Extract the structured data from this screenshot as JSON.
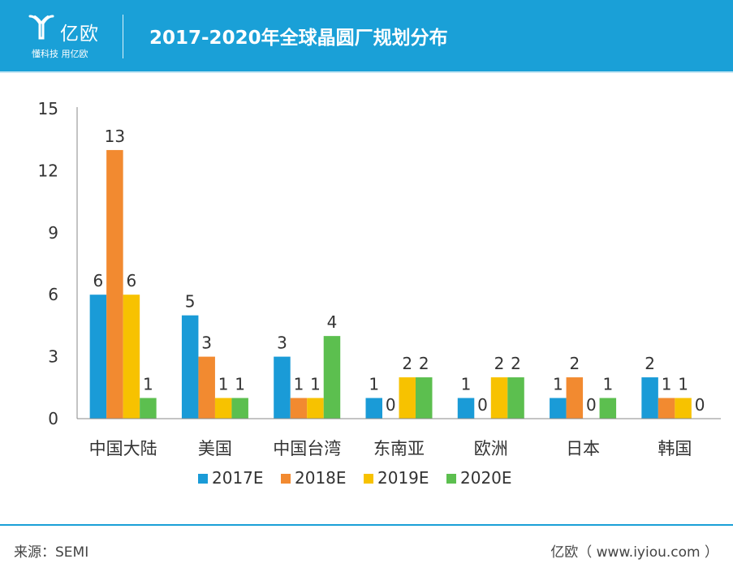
{
  "header": {
    "logo_name": "亿欧",
    "logo_slogan": "懂科技 用亿欧",
    "title": "2017-2020年全球晶圆厂规划分布"
  },
  "footer": {
    "source": "来源：SEMI",
    "site": "亿欧（ www.iyiou.com ）"
  },
  "colors": {
    "header_band": "#1aa0d7",
    "series": [
      "#1a9bd7",
      "#f28a30",
      "#f7c200",
      "#5cbf4f"
    ]
  },
  "chart_data": {
    "type": "bar",
    "title": "2017-2020年全球晶圆厂规划分布",
    "xlabel": "",
    "ylabel": "",
    "ylim": [
      0,
      15
    ],
    "yticks": [
      0,
      3,
      6,
      9,
      12,
      15
    ],
    "grid": false,
    "legend_position": "bottom",
    "categories": [
      "中国大陆",
      "美国",
      "中国台湾",
      "东南亚",
      "欧洲",
      "日本",
      "韩国"
    ],
    "series": [
      {
        "name": "2017E",
        "color": "#1a9bd7",
        "values": [
          6,
          5,
          3,
          1,
          1,
          1,
          2
        ]
      },
      {
        "name": "2018E",
        "color": "#f28a30",
        "values": [
          13,
          3,
          1,
          0,
          0,
          2,
          1
        ]
      },
      {
        "name": "2019E",
        "color": "#f7c200",
        "values": [
          6,
          1,
          1,
          2,
          2,
          0,
          1
        ]
      },
      {
        "name": "2020E",
        "color": "#5cbf4f",
        "values": [
          1,
          1,
          4,
          2,
          2,
          1,
          0
        ]
      }
    ]
  }
}
